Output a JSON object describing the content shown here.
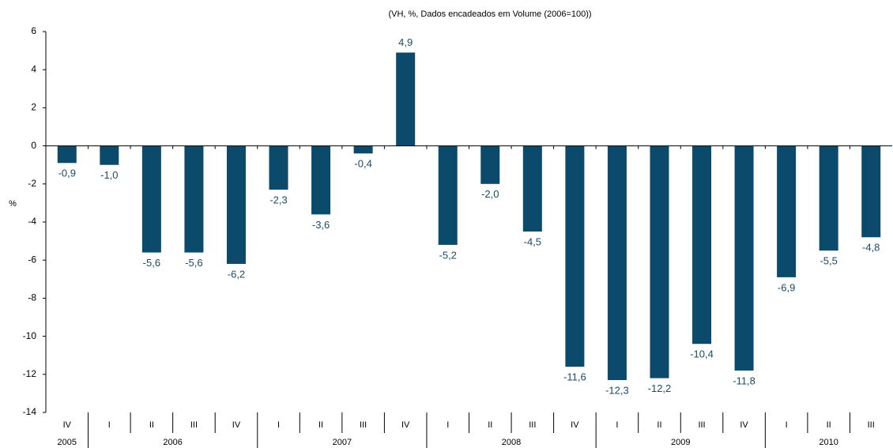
{
  "chart_data": {
    "type": "bar",
    "title": "(VH, %, Dados encadeados em Volume (2006=100))",
    "y_label": "%",
    "categories": [
      "IV",
      "I",
      "II",
      "III",
      "IV",
      "I",
      "II",
      "III",
      "IV",
      "I",
      "II",
      "III",
      "IV",
      "I",
      "II",
      "III",
      "IV",
      "I",
      "II",
      "III"
    ],
    "category_groups": [
      "2005",
      "2006",
      "2006",
      "2006",
      "2006",
      "2007",
      "2007",
      "2007",
      "2007",
      "2008",
      "2008",
      "2008",
      "2008",
      "2009",
      "2009",
      "2009",
      "2009",
      "2010",
      "2010",
      "2010"
    ],
    "values": [
      -0.9,
      -1.0,
      -5.6,
      -5.6,
      -6.2,
      -2.3,
      -3.6,
      -0.4,
      4.9,
      -5.2,
      -2.0,
      -4.5,
      -11.6,
      -12.3,
      -12.2,
      -10.4,
      -11.8,
      -6.9,
      -5.5,
      -4.8
    ],
    "value_labels": [
      "-0,9",
      "-1,0",
      "-5,6",
      "-5,6",
      "-6,2",
      "-2,3",
      "-3,6",
      "-0,4",
      "4,9",
      "-5,2",
      "-2,0",
      "-4,5",
      "-11,6",
      "-12,3",
      "-12,2",
      "-10,4",
      "-11,8",
      "-6,9",
      "-5,5",
      "-4,8"
    ],
    "color": "#0b4a6a",
    "ylim": [
      -14,
      6
    ],
    "yticks": [
      -14,
      -12,
      -10,
      -8,
      -6,
      -4,
      -2,
      0,
      2,
      4,
      6
    ]
  }
}
